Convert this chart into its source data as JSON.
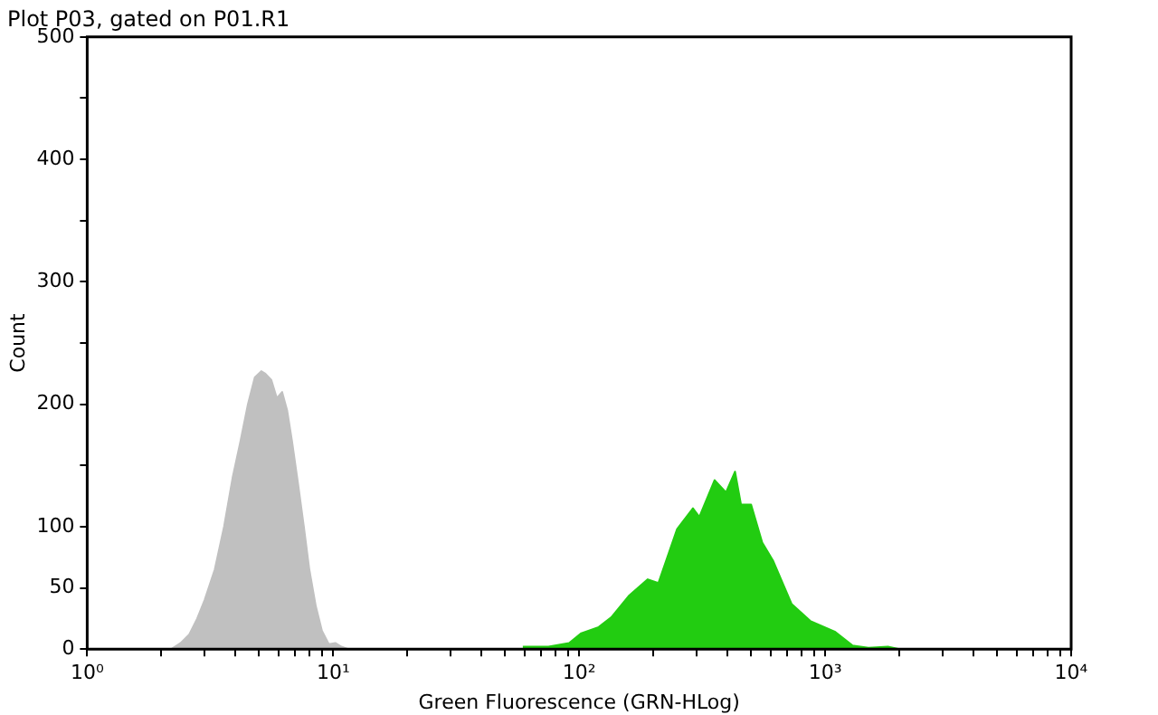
{
  "chart_data": {
    "type": "area",
    "title": "Plot P03, gated on P01.R1",
    "xlabel": "Green Fluorescence (GRN-HLog)",
    "ylabel": "Count",
    "log": "x",
    "grid": false,
    "legend": false,
    "marker": "none",
    "xlim": [
      1,
      10000
    ],
    "xticks": [
      {
        "value": 1,
        "label": "10⁰"
      },
      {
        "value": 2,
        "label": null
      },
      {
        "value": 3,
        "label": null
      },
      {
        "value": 4,
        "label": null
      },
      {
        "value": 5,
        "label": null
      },
      {
        "value": 6,
        "label": null
      },
      {
        "value": 7,
        "label": null
      },
      {
        "value": 8,
        "label": null
      },
      {
        "value": 9,
        "label": null
      },
      {
        "value": 10,
        "label": "10¹"
      },
      {
        "value": 20,
        "label": null
      },
      {
        "value": 30,
        "label": null
      },
      {
        "value": 40,
        "label": null
      },
      {
        "value": 50,
        "label": null
      },
      {
        "value": 60,
        "label": null
      },
      {
        "value": 70,
        "label": null
      },
      {
        "value": 80,
        "label": null
      },
      {
        "value": 90,
        "label": null
      },
      {
        "value": 100,
        "label": "10²"
      },
      {
        "value": 200,
        "label": null
      },
      {
        "value": 300,
        "label": null
      },
      {
        "value": 400,
        "label": null
      },
      {
        "value": 500,
        "label": null
      },
      {
        "value": 600,
        "label": null
      },
      {
        "value": 700,
        "label": null
      },
      {
        "value": 800,
        "label": null
      },
      {
        "value": 900,
        "label": null
      },
      {
        "value": 1000,
        "label": "10³"
      },
      {
        "value": 2000,
        "label": null
      },
      {
        "value": 3000,
        "label": null
      },
      {
        "value": 4000,
        "label": null
      },
      {
        "value": 5000,
        "label": null
      },
      {
        "value": 6000,
        "label": null
      },
      {
        "value": 7000,
        "label": null
      },
      {
        "value": 8000,
        "label": null
      },
      {
        "value": 9000,
        "label": null
      },
      {
        "value": 10000,
        "label": "10⁴"
      }
    ],
    "ylim": [
      0,
      500
    ],
    "yticks": [
      0,
      50,
      100,
      {
        "value": 150,
        "label": null
      },
      200,
      {
        "value": 250,
        "label": null
      },
      300,
      {
        "value": 350,
        "label": null
      },
      400,
      {
        "value": 450,
        "label": null
      },
      500
    ],
    "series": [
      {
        "color": "#c0c0c0",
        "x": [
          2.2,
          2.4,
          2.6,
          2.8,
          3.0,
          3.3,
          3.6,
          3.9,
          4.2,
          4.5,
          4.8,
          5.1,
          5.3,
          5.6,
          5.9,
          6.2,
          6.5,
          6.8,
          7.2,
          7.6,
          8.0,
          8.5,
          9.0,
          9.6,
          10.2,
          10.8,
          11.5
        ],
        "values": [
          0,
          5,
          12,
          25,
          40,
          65,
          100,
          140,
          170,
          200,
          222,
          227,
          225,
          220,
          205,
          210,
          195,
          170,
          135,
          100,
          65,
          35,
          15,
          4,
          5,
          2,
          0
        ]
      },
      {
        "color": "#22cc11",
        "x": [
          59,
          75,
          91,
          102,
          120,
          135,
          160,
          190,
          210,
          250,
          290,
          308,
          355,
          395,
          430,
          455,
          500,
          555,
          615,
          730,
          870,
          1100,
          1290,
          1500,
          1800,
          2000
        ],
        "values": [
          2,
          2,
          5,
          13,
          18,
          26,
          44,
          57,
          54,
          98,
          115,
          108,
          138,
          128,
          145,
          118,
          118,
          87,
          72,
          37,
          23,
          14,
          3,
          1,
          2,
          0
        ]
      }
    ]
  }
}
